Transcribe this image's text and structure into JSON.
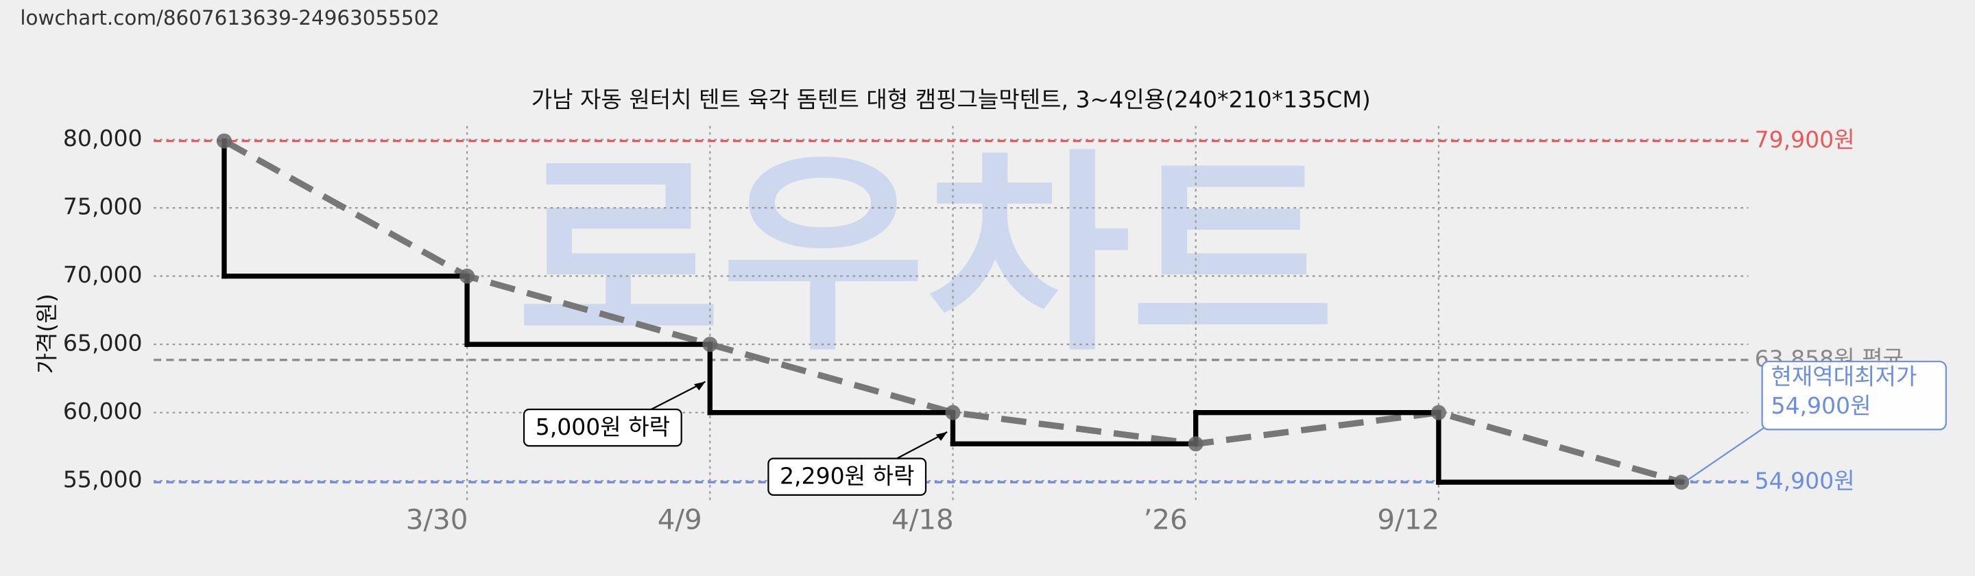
{
  "url": "lowchart.com/8607613639-24963055502",
  "chart_data": {
    "type": "step-line",
    "title": "가남 자동 원터치 텐트 육각 돔텐트 대형 캠핑그늘막텐트, 3~4인용(240*210*135CM)",
    "watermark": "로우차트",
    "y_label": "가격(원)",
    "categories": [
      null,
      "3/30",
      "4/9",
      "4/18",
      "’26",
      "9/12",
      null
    ],
    "values": [
      79900,
      70000,
      65000,
      60000,
      57710,
      60000,
      54900
    ],
    "step_color": "#000000",
    "trend_color": "#777777",
    "ylim": [
      53500,
      81000
    ],
    "yticks": [
      {
        "value": 55000,
        "label": "55,000"
      },
      {
        "value": 60000,
        "label": "60,000"
      },
      {
        "value": 65000,
        "label": "65,000"
      },
      {
        "value": 70000,
        "label": "70,000"
      },
      {
        "value": 75000,
        "label": "75,000"
      },
      {
        "value": 80000,
        "label": "80,000"
      }
    ],
    "grid": true,
    "reference_lines": [
      {
        "value": 79900,
        "label": "79,900원",
        "color": "#e8595a"
      },
      {
        "value": 63858,
        "label": "63,858원 평균",
        "color": "#888888"
      },
      {
        "value": 54900,
        "label": "54,900원",
        "color": "#6b8ee0"
      }
    ],
    "annotations": [
      "5,000원 하락",
      "2,290원 하락"
    ],
    "callout": [
      "현재역대최저가",
      "54,900원"
    ]
  }
}
